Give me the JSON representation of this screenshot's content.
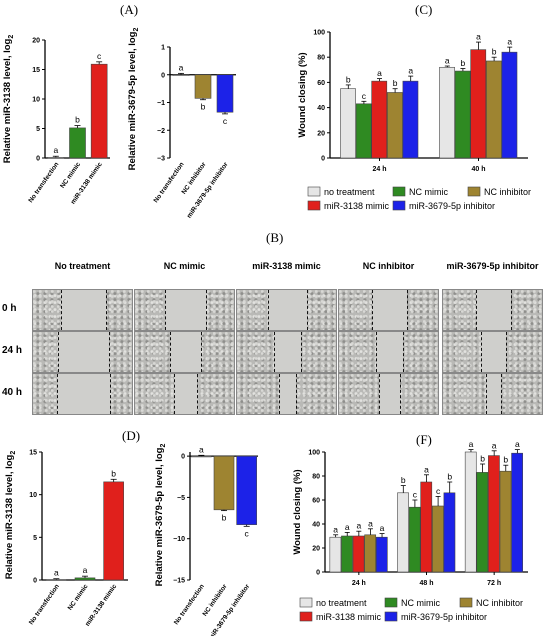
{
  "panel_labels": {
    "A": "(A)",
    "B": "(B)",
    "C": "(C)",
    "D": "(D)",
    "F": "(F)"
  },
  "colors": {
    "no_treatment": "#e6e6e6",
    "nc_mimic": "#2f8a22",
    "mir3138": "#e0201c",
    "nc_inhibitor": "#9e8431",
    "mir3679": "#1c22e8",
    "sig": "#000000"
  },
  "micrographs": {
    "columns": [
      "No treatment",
      "NC mimic",
      "miR-3138 mimic",
      "NC inhibitor",
      "miR-3679-5p inhibitor"
    ],
    "rows": [
      "0 h",
      "24 h",
      "40 h"
    ]
  },
  "chart_data": [
    {
      "id": "A1",
      "type": "bar",
      "ylabel": "Relative miR-3138 level, log",
      "ylabel_sub": "2",
      "categories": [
        "No transfection",
        "NC mimic",
        "miR-3138 mimic"
      ],
      "values": [
        0.1,
        5.1,
        15.9
      ],
      "errors": [
        0.2,
        0.4,
        0.4
      ],
      "letters": [
        "a",
        "b",
        "c"
      ],
      "colors": [
        "#e6e6e6",
        "#2f8a22",
        "#e0201c"
      ],
      "ylim": [
        0,
        20
      ],
      "yticks": [
        0,
        5,
        10,
        15,
        20
      ]
    },
    {
      "id": "A2",
      "type": "bar",
      "ylabel": "Relative miR-3679-5p level, log",
      "ylabel_sub": "2",
      "categories": [
        "No transfection",
        "NC inhibitor",
        "miR-3679-5p inhibitor"
      ],
      "values": [
        0.0,
        -0.85,
        -1.35
      ],
      "errors": [
        0.05,
        0.05,
        0.06
      ],
      "letters": [
        "a",
        "b",
        "c"
      ],
      "colors": [
        "#e6e6e6",
        "#9e8431",
        "#1c22e8"
      ],
      "ylim": [
        -3,
        1
      ],
      "yticks": [
        -3,
        -2,
        -1,
        0,
        1
      ]
    },
    {
      "id": "C",
      "type": "bar",
      "ylabel": "Wound closing (%)",
      "categories": [
        "24 h",
        "40 h"
      ],
      "series": [
        {
          "name": "no treatment",
          "values": [
            55,
            72
          ],
          "errors": [
            3,
            1
          ],
          "letters": [
            "b",
            "a"
          ]
        },
        {
          "name": "NC mimic",
          "values": [
            43,
            69
          ],
          "errors": [
            2,
            2
          ],
          "letters": [
            "c",
            "b"
          ]
        },
        {
          "name": "miR-3138 mimic",
          "values": [
            61,
            86
          ],
          "errors": [
            2,
            6
          ],
          "letters": [
            "a",
            "a"
          ]
        },
        {
          "name": "NC inhibitor",
          "values": [
            52,
            77
          ],
          "errors": [
            3,
            3
          ],
          "letters": [
            "b",
            "b"
          ]
        },
        {
          "name": "miR-3679-5p inhibitor",
          "values": [
            61,
            84
          ],
          "errors": [
            4,
            4
          ],
          "letters": [
            "a",
            "a"
          ]
        }
      ],
      "ylim": [
        0,
        100
      ],
      "yticks": [
        0,
        20,
        40,
        60,
        80,
        100
      ]
    },
    {
      "id": "D1",
      "type": "bar",
      "ylabel": "Relative miR-3138 level, log",
      "ylabel_sub": "2",
      "categories": [
        "No transfection",
        "NC mimic",
        "miR-3138 mimic"
      ],
      "values": [
        0.05,
        0.25,
        11.5
      ],
      "errors": [
        0.1,
        0.2,
        0.3
      ],
      "letters": [
        "a",
        "a",
        "b"
      ],
      "colors": [
        "#e6e6e6",
        "#2f8a22",
        "#e0201c"
      ],
      "ylim": [
        0,
        15
      ],
      "yticks": [
        0,
        5,
        10,
        15
      ]
    },
    {
      "id": "D2",
      "type": "bar",
      "ylabel": "Relative miR-3679-5p level, log",
      "ylabel_sub": "2",
      "categories": [
        "No transfection",
        "NC inhibitor",
        "miR-3679-5p inhibitor"
      ],
      "values": [
        0.0,
        -6.5,
        -8.3
      ],
      "errors": [
        0.1,
        0.1,
        0.2
      ],
      "letters": [
        "a",
        "b",
        "c"
      ],
      "colors": [
        "#e6e6e6",
        "#9e8431",
        "#1c22e8"
      ],
      "ylim": [
        -15,
        0.5
      ],
      "yticks": [
        -15,
        -10,
        -5,
        0
      ]
    },
    {
      "id": "F",
      "type": "bar",
      "ylabel": "Wound closing (%)",
      "categories": [
        "24 h",
        "48 h",
        "72 h"
      ],
      "series": [
        {
          "name": "no treatment",
          "values": [
            29,
            66,
            100
          ],
          "errors": [
            2,
            6,
            2
          ],
          "letters": [
            "a",
            "b",
            "a"
          ]
        },
        {
          "name": "NC mimic",
          "values": [
            30,
            54,
            83
          ],
          "errors": [
            3,
            6,
            7
          ],
          "letters": [
            "a",
            "c",
            "b"
          ]
        },
        {
          "name": "miR-3138 mimic",
          "values": [
            30,
            75,
            97
          ],
          "errors": [
            4,
            6,
            4
          ],
          "letters": [
            "a",
            "a",
            "a"
          ]
        },
        {
          "name": "NC inhibitor",
          "values": [
            31,
            55,
            84
          ],
          "errors": [
            5,
            8,
            5
          ],
          "letters": [
            "a",
            "c",
            "b"
          ]
        },
        {
          "name": "miR-3679-5p inhibitor",
          "values": [
            29,
            66,
            99
          ],
          "errors": [
            3,
            9,
            3
          ],
          "letters": [
            "a",
            "b",
            "a"
          ]
        }
      ],
      "ylim": [
        0,
        100
      ],
      "yticks": [
        0,
        20,
        40,
        60,
        80,
        100
      ]
    }
  ],
  "legends": {
    "C": [
      "no treatment",
      "NC mimic",
      "NC inhibitor",
      "miR-3138 mimic",
      "miR-3679-5p inhibitor"
    ],
    "F": [
      "no treatment",
      "NC mimic",
      "NC inhibitor",
      "miR-3138 mimic",
      "miR-3679-5p inhibitor"
    ]
  }
}
